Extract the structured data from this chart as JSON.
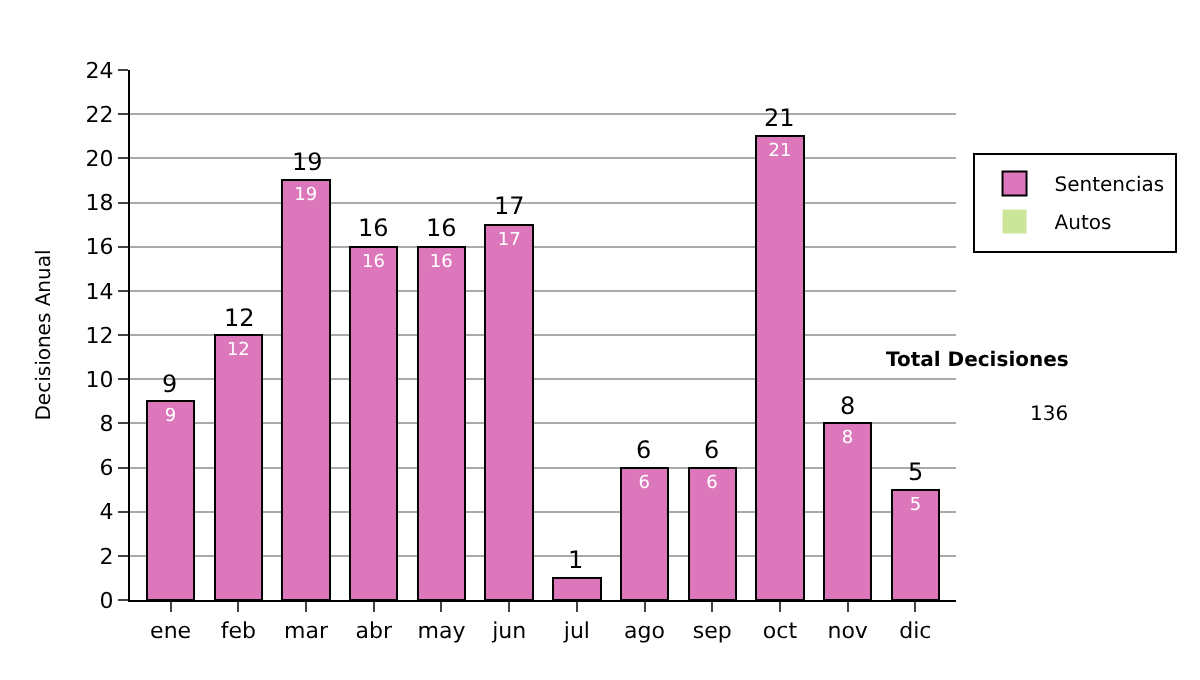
{
  "chart_data": {
    "type": "bar",
    "stacked": true,
    "ylabel": "Decisiones Anual",
    "categories": [
      "ene",
      "feb",
      "mar",
      "abr",
      "may",
      "jun",
      "jul",
      "ago",
      "sep",
      "oct",
      "nov",
      "dic"
    ],
    "series": [
      {
        "name": "Sentencias",
        "color": "#dd77bb",
        "values": [
          9,
          12,
          19,
          16,
          16,
          17,
          1,
          6,
          6,
          21,
          8,
          5
        ],
        "value_labels": [
          "9",
          "12",
          "19",
          "16",
          "16",
          "17",
          null,
          "6",
          "6",
          "21",
          "8",
          "5"
        ]
      },
      {
        "name": "Autos",
        "color": "#cce699",
        "values": [
          0,
          0,
          0,
          0,
          0,
          0,
          0,
          0,
          0,
          0,
          0,
          0
        ]
      }
    ],
    "totals": [
      "9",
      "12",
      "19",
      "16",
      "16",
      "17",
      "1",
      "6",
      "6",
      "21",
      "8",
      "5"
    ],
    "ylim": [
      0,
      24
    ],
    "yticks": [
      0,
      2,
      4,
      6,
      8,
      10,
      12,
      14,
      16,
      18,
      20,
      22,
      24
    ],
    "grid": "y",
    "legend": "right",
    "annotations": [
      "Total Decisiones",
      "136"
    ]
  }
}
